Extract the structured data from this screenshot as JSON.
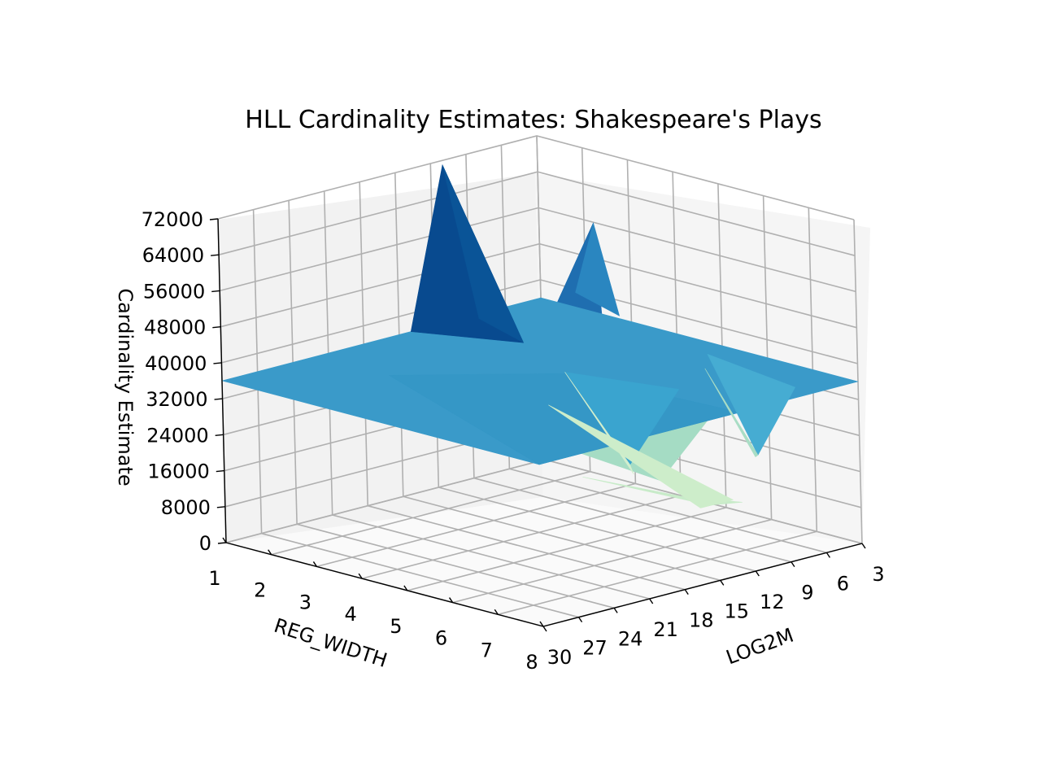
{
  "chart_data": {
    "type": "surface",
    "title": "HLL Cardinality Estimates: Shakespeare's Plays",
    "xlabel": "LOG2M",
    "ylabel": "REG_WIDTH",
    "zlabel": "Cardinality Estimate",
    "x_ticks": [
      "3",
      "6",
      "9",
      "12",
      "15",
      "18",
      "21",
      "24",
      "27",
      "30"
    ],
    "y_ticks": [
      "1",
      "2",
      "3",
      "4",
      "5",
      "6",
      "7",
      "8"
    ],
    "z_ticks": [
      "0",
      "8000",
      "16000",
      "24000",
      "32000",
      "40000",
      "48000",
      "56000",
      "64000",
      "72000"
    ],
    "xlim": [
      3,
      30
    ],
    "ylim": [
      1,
      8
    ],
    "zlim": [
      0,
      72000
    ],
    "grid": true,
    "colormap": "GnBu",
    "colors": {
      "high": "#084a8f",
      "mid": "#3a9ac9",
      "low": "#d2eecd",
      "pane_left": "#f2f2f2",
      "pane_right": "#f7f7f7",
      "pane_floor": "#fafafa"
    },
    "surface_level": 36000,
    "features": [
      {
        "label": "peak",
        "log2m": 11,
        "reg_width": 1,
        "estimate": 71000
      },
      {
        "label": "peak",
        "log2m": 6,
        "reg_width": 3,
        "estimate": 60000
      },
      {
        "label": "dip",
        "log2m": 11,
        "reg_width": 5,
        "estimate": 15000
      },
      {
        "label": "dip",
        "log2m": 4,
        "reg_width": 6,
        "estimate": 15000
      }
    ]
  }
}
